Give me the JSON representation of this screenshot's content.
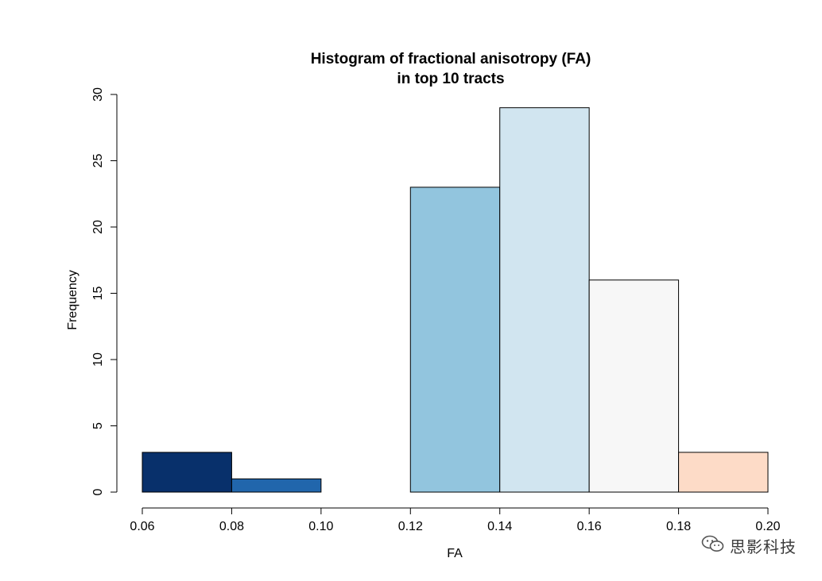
{
  "chart_data": {
    "type": "bar",
    "title": "Histogram of fractional anisotropy (FA)",
    "subtitle": "in top 10 tracts",
    "xlabel": "FA",
    "ylabel": "Frequency",
    "bins": [
      {
        "start": 0.06,
        "end": 0.08,
        "count": 3,
        "color": "#08306b"
      },
      {
        "start": 0.08,
        "end": 0.1,
        "count": 1,
        "color": "#2166ac"
      },
      {
        "start": 0.1,
        "end": 0.12,
        "count": 0,
        "color": "#4393c3"
      },
      {
        "start": 0.12,
        "end": 0.14,
        "count": 23,
        "color": "#92c5de"
      },
      {
        "start": 0.14,
        "end": 0.16,
        "count": 29,
        "color": "#d1e5f0"
      },
      {
        "start": 0.16,
        "end": 0.18,
        "count": 16,
        "color": "#f7f7f7"
      },
      {
        "start": 0.18,
        "end": 0.2,
        "count": 3,
        "color": "#fddbc7"
      }
    ],
    "xlim": [
      0.06,
      0.2
    ],
    "ylim": [
      0,
      30
    ],
    "xticks": [
      "0.06",
      "0.08",
      "0.10",
      "0.12",
      "0.14",
      "0.16",
      "0.18",
      "0.20"
    ],
    "yticks": [
      "0",
      "5",
      "10",
      "15",
      "20",
      "25",
      "30"
    ],
    "grid": false,
    "legend": "none"
  },
  "watermark": {
    "text": "思影科技",
    "icon": "wechat-icon"
  }
}
